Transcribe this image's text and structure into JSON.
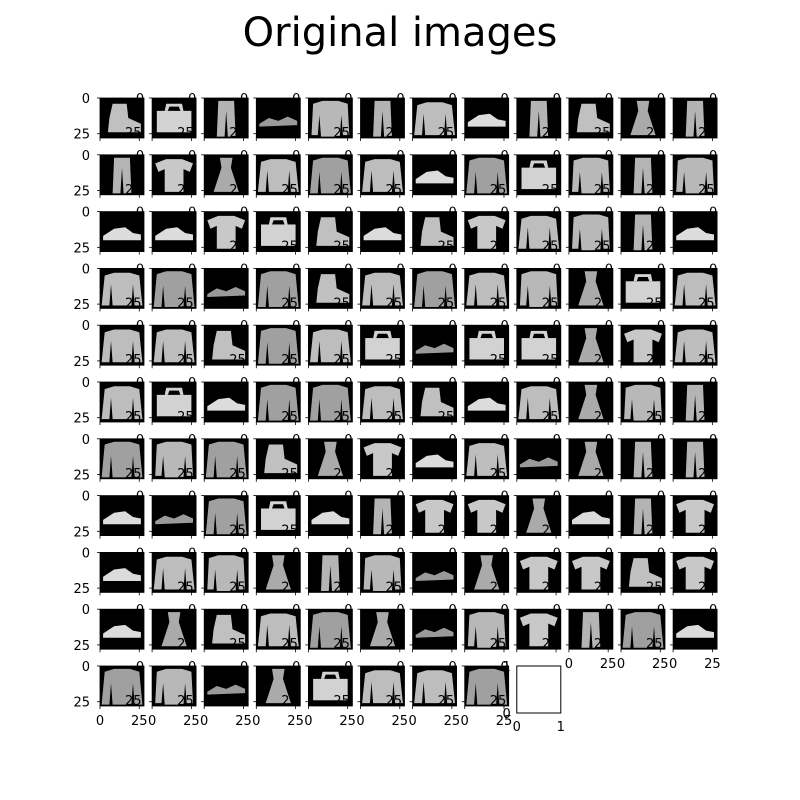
{
  "title": "Original images",
  "chart_data": {
    "type": "image-grid",
    "title": "Original images",
    "rows": 11,
    "cols": 12,
    "image_count": 128,
    "row_items": [
      [
        "ankle-boot",
        "bag",
        "trouser",
        "sandal",
        "shirt",
        "trouser",
        "pullover",
        "sneaker",
        "trouser",
        "ankle-boot",
        "dress",
        "trouser"
      ],
      [
        "trouser",
        "t-shirt",
        "dress",
        "pullover",
        "coat",
        "pullover",
        "sneaker",
        "coat",
        "bag",
        "shirt",
        "trouser",
        "shirt"
      ],
      [
        "sneaker",
        "sneaker",
        "t-shirt",
        "bag",
        "ankle-boot",
        "sneaker",
        "ankle-boot",
        "t-shirt",
        "pullover",
        "shirt",
        "trouser",
        "sneaker"
      ],
      [
        "pullover",
        "coat",
        "sandal",
        "coat",
        "ankle-boot",
        "pullover",
        "coat",
        "pullover",
        "shirt",
        "dress",
        "bag",
        "pullover"
      ],
      [
        "pullover",
        "pullover",
        "ankle-boot",
        "coat",
        "pullover",
        "bag",
        "sandal",
        "bag",
        "bag",
        "dress",
        "t-shirt",
        "pullover"
      ],
      [
        "pullover",
        "bag",
        "sneaker",
        "coat",
        "coat",
        "pullover",
        "ankle-boot",
        "sneaker",
        "pullover",
        "dress",
        "shirt",
        "trouser"
      ],
      [
        "coat",
        "shirt",
        "coat",
        "ankle-boot",
        "dress",
        "t-shirt",
        "sneaker",
        "pullover",
        "sandal",
        "dress",
        "trouser",
        "trouser"
      ],
      [
        "sneaker",
        "sandal",
        "coat",
        "bag",
        "sneaker",
        "trouser",
        "t-shirt",
        "t-shirt",
        "dress",
        "sneaker",
        "trouser",
        "t-shirt"
      ],
      [
        "sneaker",
        "pullover",
        "shirt",
        "dress",
        "trouser",
        "shirt",
        "sandal",
        "dress",
        "t-shirt",
        "t-shirt",
        "ankle-boot",
        "t-shirt"
      ],
      [
        "sneaker",
        "dress",
        "ankle-boot",
        "pullover",
        "coat",
        "dress",
        "sandal",
        "shirt",
        "t-shirt",
        "trouser",
        "coat",
        "sneaker"
      ],
      [
        "coat",
        "shirt",
        "sandal",
        "dress",
        "bag",
        "pullover",
        "pullover",
        "coat"
      ]
    ],
    "x_ticks": [
      "0",
      "25"
    ],
    "y_ticks": [
      "0",
      "25"
    ],
    "empty_axis_x_ticks": [
      "0",
      "1"
    ],
    "empty_axis_y_ticks": [
      "0",
      "1"
    ],
    "pixel_range": [
      0,
      28
    ],
    "colormap": "gray"
  }
}
